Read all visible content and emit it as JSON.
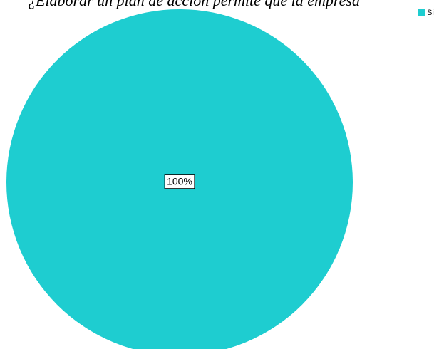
{
  "chart_data": {
    "type": "pie",
    "title": "¿Elaborar un plan de acción permite que la empresa",
    "categories": [
      "Si"
    ],
    "values": [
      100
    ],
    "data_labels": [
      "100%"
    ],
    "colors": [
      "#1ecdd0"
    ],
    "legend": "top-right"
  }
}
